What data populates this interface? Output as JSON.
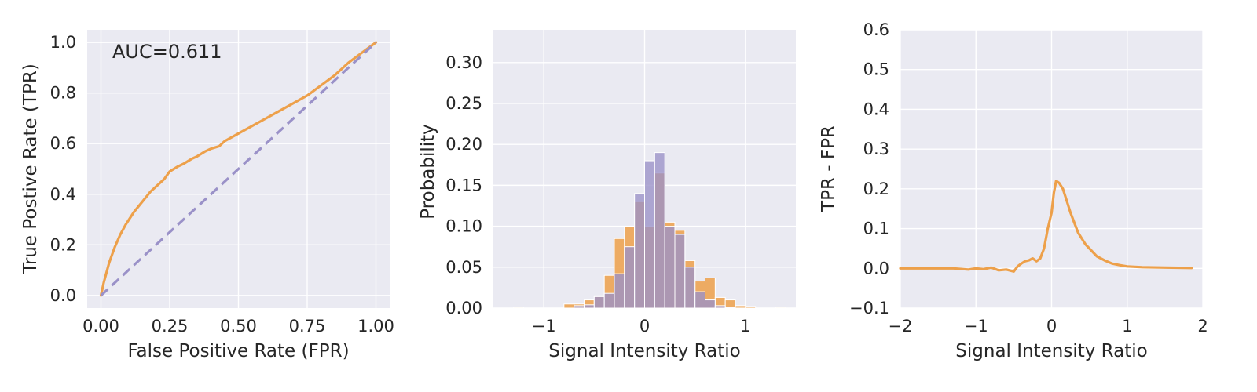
{
  "colors": {
    "orange": "#eda04a",
    "purple": "#9a91c8",
    "background": "#eaeaf2",
    "grid": "#ffffff",
    "text": "#262626"
  },
  "chart_data": [
    {
      "type": "line",
      "xlabel": "False Positive Rate (FPR)",
      "ylabel": "True Postive Rate (TPR)",
      "xlim": [
        -0.05,
        1.05
      ],
      "ylim": [
        -0.05,
        1.05
      ],
      "xticks": [
        0.0,
        0.25,
        0.5,
        0.75,
        1.0
      ],
      "xtick_labels": [
        "0.00",
        "0.25",
        "0.50",
        "0.75",
        "1.00"
      ],
      "yticks": [
        0.0,
        0.2,
        0.4,
        0.6,
        0.8,
        1.0
      ],
      "ytick_labels": [
        "0.0",
        "0.2",
        "0.4",
        "0.6",
        "0.8",
        "1.0"
      ],
      "grid": true,
      "annotation": "AUC=0.611",
      "series": [
        {
          "color": "orange",
          "style": "solid",
          "x": [
            0.0,
            0.01,
            0.02,
            0.03,
            0.05,
            0.07,
            0.09,
            0.12,
            0.15,
            0.18,
            0.2,
            0.23,
            0.25,
            0.28,
            0.3,
            0.33,
            0.35,
            0.38,
            0.4,
            0.43,
            0.45,
            0.5,
            0.55,
            0.6,
            0.65,
            0.7,
            0.75,
            0.8,
            0.85,
            0.9,
            0.95,
            1.0
          ],
          "y": [
            0.0,
            0.05,
            0.09,
            0.13,
            0.19,
            0.24,
            0.28,
            0.33,
            0.37,
            0.41,
            0.43,
            0.46,
            0.49,
            0.51,
            0.52,
            0.54,
            0.55,
            0.57,
            0.58,
            0.59,
            0.61,
            0.64,
            0.67,
            0.7,
            0.73,
            0.76,
            0.79,
            0.83,
            0.87,
            0.92,
            0.96,
            1.0
          ]
        },
        {
          "color": "purple",
          "style": "dashed",
          "x": [
            0.0,
            1.0
          ],
          "y": [
            0.0,
            1.0
          ]
        }
      ]
    },
    {
      "type": "bar",
      "xlabel": "Signal Intensity Ratio",
      "ylabel": "Probability",
      "xlim": [
        -1.5,
        1.5
      ],
      "ylim": [
        0,
        0.34
      ],
      "xticks": [
        -1,
        0,
        1
      ],
      "xtick_labels": [
        "−1",
        "0",
        "1"
      ],
      "yticks": [
        0.0,
        0.05,
        0.1,
        0.15,
        0.2,
        0.25,
        0.3
      ],
      "ytick_labels": [
        "0.00",
        "0.05",
        "0.10",
        "0.15",
        "0.20",
        "0.25",
        "0.30"
      ],
      "grid": true,
      "bin_width": 0.1,
      "series": [
        {
          "color": "orange",
          "bins": [
            {
              "x0": -1.3,
              "value": 0.001
            },
            {
              "x0": -0.8,
              "value": 0.005
            },
            {
              "x0": -0.7,
              "value": 0.005
            },
            {
              "x0": -0.6,
              "value": 0.01
            },
            {
              "x0": -0.5,
              "value": 0.015
            },
            {
              "x0": -0.4,
              "value": 0.04
            },
            {
              "x0": -0.3,
              "value": 0.085
            },
            {
              "x0": -0.2,
              "value": 0.1
            },
            {
              "x0": -0.1,
              "value": 0.13
            },
            {
              "x0": 0.0,
              "value": 0.1
            },
            {
              "x0": 0.1,
              "value": 0.165
            },
            {
              "x0": 0.2,
              "value": 0.105
            },
            {
              "x0": 0.3,
              "value": 0.095
            },
            {
              "x0": 0.4,
              "value": 0.058
            },
            {
              "x0": 0.5,
              "value": 0.033
            },
            {
              "x0": 0.6,
              "value": 0.037
            },
            {
              "x0": 0.7,
              "value": 0.013
            },
            {
              "x0": 0.8,
              "value": 0.01
            },
            {
              "x0": 0.9,
              "value": 0.003
            },
            {
              "x0": 1.0,
              "value": 0.002
            },
            {
              "x0": 1.3,
              "value": 0.001
            }
          ]
        },
        {
          "color": "purple",
          "bins": [
            {
              "x0": -0.7,
              "value": 0.003
            },
            {
              "x0": -0.6,
              "value": 0.004
            },
            {
              "x0": -0.5,
              "value": 0.014
            },
            {
              "x0": -0.4,
              "value": 0.018
            },
            {
              "x0": -0.3,
              "value": 0.042
            },
            {
              "x0": -0.2,
              "value": 0.075
            },
            {
              "x0": -0.1,
              "value": 0.14
            },
            {
              "x0": 0.0,
              "value": 0.18
            },
            {
              "x0": 0.1,
              "value": 0.19
            },
            {
              "x0": 0.2,
              "value": 0.1
            },
            {
              "x0": 0.3,
              "value": 0.09
            },
            {
              "x0": 0.4,
              "value": 0.05
            },
            {
              "x0": 0.5,
              "value": 0.02
            },
            {
              "x0": 0.6,
              "value": 0.01
            },
            {
              "x0": 0.7,
              "value": 0.003
            },
            {
              "x0": 0.8,
              "value": 0.001
            }
          ]
        }
      ]
    },
    {
      "type": "line",
      "xlabel": "Signal Intensity Ratio",
      "ylabel": "TPR - FPR",
      "xlim": [
        -2,
        2
      ],
      "ylim": [
        -0.1,
        0.6
      ],
      "xticks": [
        -2,
        -1,
        0,
        1,
        2
      ],
      "xtick_labels": [
        "−2",
        "−1",
        "0",
        "1",
        "2"
      ],
      "yticks": [
        -0.1,
        0.0,
        0.1,
        0.2,
        0.3,
        0.4,
        0.5,
        0.6
      ],
      "ytick_labels": [
        "−0.1",
        "0.0",
        "0.1",
        "0.2",
        "0.3",
        "0.4",
        "0.5",
        "0.6"
      ],
      "grid": true,
      "series": [
        {
          "color": "orange",
          "style": "solid",
          "x": [
            -2.0,
            -1.5,
            -1.3,
            -1.1,
            -1.0,
            -0.9,
            -0.8,
            -0.7,
            -0.6,
            -0.5,
            -0.45,
            -0.4,
            -0.35,
            -0.3,
            -0.25,
            -0.2,
            -0.15,
            -0.1,
            -0.05,
            0.0,
            0.03,
            0.06,
            0.1,
            0.15,
            0.2,
            0.25,
            0.3,
            0.35,
            0.4,
            0.45,
            0.5,
            0.55,
            0.6,
            0.7,
            0.8,
            0.9,
            1.0,
            1.2,
            1.5,
            1.85
          ],
          "y": [
            0.0,
            0.0,
            0.0,
            -0.003,
            0.0,
            -0.002,
            0.002,
            -0.005,
            -0.003,
            -0.008,
            0.005,
            0.012,
            0.018,
            0.02,
            0.025,
            0.018,
            0.025,
            0.05,
            0.1,
            0.14,
            0.19,
            0.22,
            0.215,
            0.2,
            0.17,
            0.14,
            0.115,
            0.09,
            0.075,
            0.06,
            0.05,
            0.04,
            0.03,
            0.02,
            0.012,
            0.008,
            0.005,
            0.003,
            0.002,
            0.001
          ]
        }
      ]
    }
  ]
}
